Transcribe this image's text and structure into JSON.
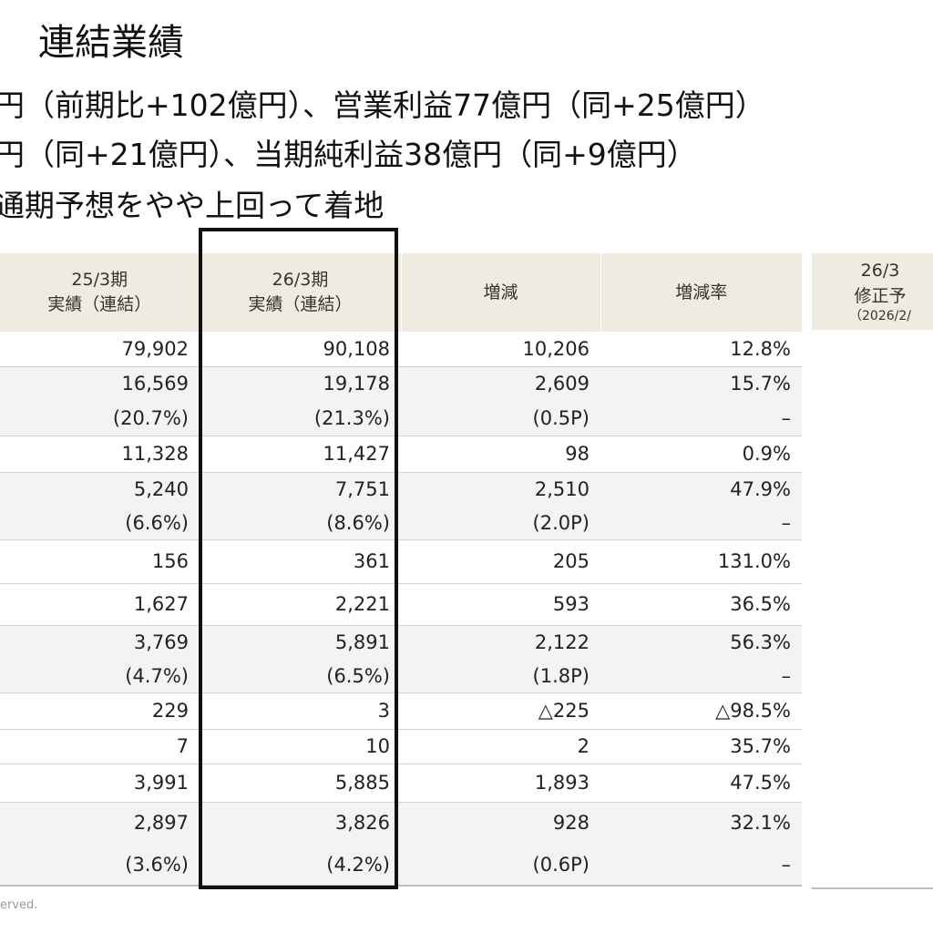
{
  "title": "連結業績",
  "bullets": [
    "円（前期比+102億円）、営業利益77億円（同+25億円）",
    "円（同+21億円）、当期純利益38億円（同+9億円）",
    "通期予想をやや上回って着地"
  ],
  "table": {
    "headers": [
      [
        "25/3期",
        "実績（連結）"
      ],
      [
        "26/3期",
        "実績（連結）"
      ],
      [
        "増減"
      ],
      [
        "増減率"
      ]
    ],
    "rows": [
      [
        "79,902",
        "90,108",
        "10,206",
        "12.8%"
      ],
      [
        "16,569",
        "19,178",
        "2,609",
        "15.7%"
      ],
      [
        "(20.7%)",
        "(21.3%)",
        "(0.5P)",
        "–"
      ],
      [
        "11,328",
        "11,427",
        "98",
        "0.9%"
      ],
      [
        "5,240",
        "7,751",
        "2,510",
        "47.9%"
      ],
      [
        "(6.6%)",
        "(8.6%)",
        "(2.0P)",
        "–"
      ],
      [
        "156",
        "361",
        "205",
        "131.0%"
      ],
      [
        "1,627",
        "2,221",
        "593",
        "36.5%"
      ],
      [
        "3,769",
        "5,891",
        "2,122",
        "56.3%"
      ],
      [
        "(4.7%)",
        "(6.5%)",
        "(1.8P)",
        "–"
      ],
      [
        "229",
        "3",
        "△225",
        "△98.5%"
      ],
      [
        "7",
        "10",
        "2",
        "35.7%"
      ],
      [
        "3,991",
        "5,885",
        "1,893",
        "47.5%"
      ],
      [
        "2,897",
        "3,826",
        "928",
        "32.1%"
      ],
      [
        "(3.6%)",
        "(4.2%)",
        "(0.6P)",
        "–"
      ]
    ]
  },
  "side_header": {
    "line1": "26/3",
    "line2": "修正予",
    "line3": "（2026/2/"
  },
  "copyright": "erved."
}
